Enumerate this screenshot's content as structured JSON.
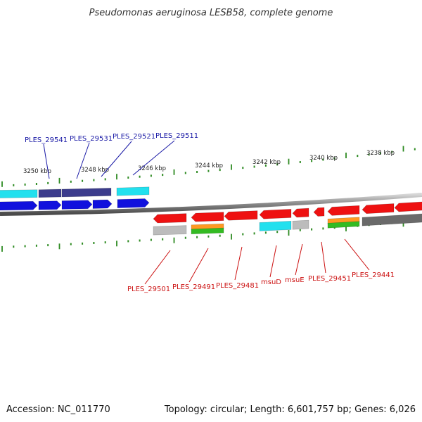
{
  "title": "Pseudomonas aeruginosa LESB58, complete genome",
  "accession": "Accession: NC_011770",
  "summary": "Topology: circular; Length: 6,601,757 bp; Genes: 6,026",
  "colors": {
    "ruler_tick": "#2e8b22",
    "backbone": "#8c8c8c",
    "forward_label": "#1a1aa6",
    "reverse_label": "#cc1111",
    "gene_red": "#ee1111",
    "gene_blue": "#1111dd",
    "gene_navy": "#3c3c8c",
    "gene_cyan": "#22e0ee",
    "gene_gray": "#bcbcbc",
    "gene_darkgray": "#6a6a6a",
    "gene_orange": "#ff9922",
    "gene_green": "#33bb22"
  },
  "ruler_labels": [
    "3250 kbp",
    "3248 kbp",
    "3246 kbp",
    "3244 kbp",
    "3242 kbp",
    "3240 kbp",
    "3238 kbp"
  ],
  "forward_gene_labels": [
    "PLES_29541",
    "PLES_29531",
    "PLES_29521",
    "PLES_29511"
  ],
  "reverse_gene_labels": [
    "PLES_29501",
    "PLES_29491",
    "PLES_29481",
    "msuD",
    "msuE",
    "PLES_29451",
    "PLES_29441"
  ]
}
